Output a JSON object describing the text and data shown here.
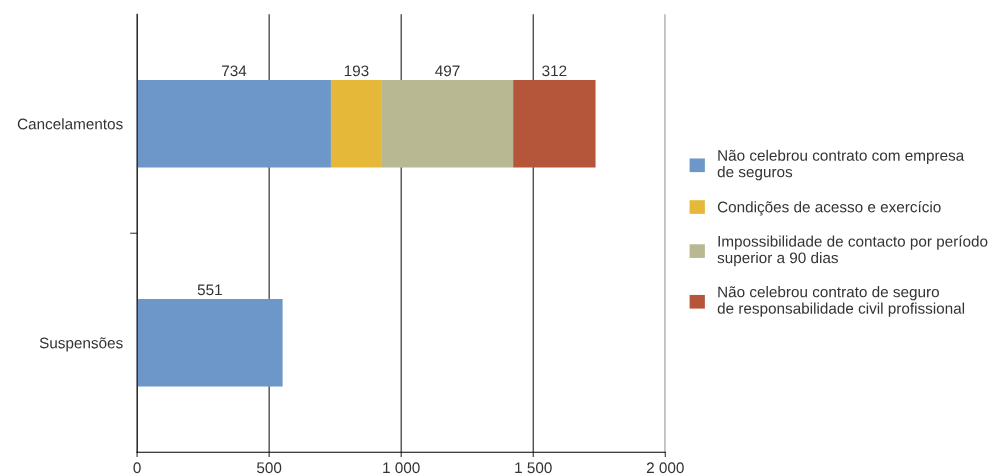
{
  "chart_data": {
    "type": "bar",
    "orientation": "horizontal",
    "stacked": true,
    "categories": [
      "Cancelamentos",
      "Suspensões"
    ],
    "series": [
      {
        "name": "Não celebrou contrato com empresa\nde seguros",
        "color": "#6d97c9",
        "values": [
          734,
          551
        ]
      },
      {
        "name": "Condições de acesso e exercício",
        "color": "#e5b83a",
        "values": [
          193,
          null
        ]
      },
      {
        "name": "Impossibilidade de contacto por período\nsuperior a 90 dias",
        "color": "#b8b892",
        "values": [
          497,
          null
        ]
      },
      {
        "name": "Não celebrou contrato de seguro\nde responsabilidade civil profissional",
        "color": "#b5563a",
        "values": [
          312,
          null
        ]
      }
    ],
    "xlim": [
      0,
      2000
    ],
    "xticks": [
      0,
      500,
      {
        "value": 1000,
        "label": "1 000"
      },
      {
        "value": 1500,
        "label": "1 500"
      },
      {
        "value": 2000,
        "label": "2 000"
      }
    ],
    "grid": "x",
    "legend": "right",
    "data_labels": true
  }
}
